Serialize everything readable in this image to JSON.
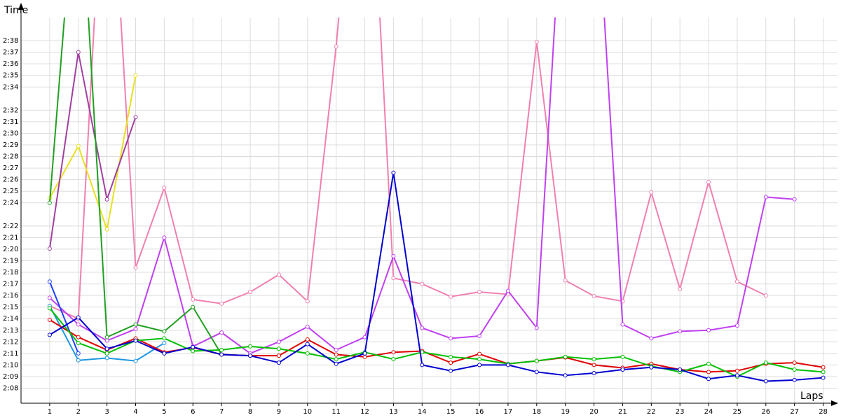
{
  "chart_data": {
    "type": "line",
    "y_label": "Time",
    "x_label": "Laps",
    "x": [
      1,
      2,
      3,
      4,
      5,
      6,
      7,
      8,
      9,
      10,
      11,
      12,
      13,
      14,
      15,
      16,
      17,
      18,
      19,
      20,
      21,
      22,
      23,
      24,
      25,
      26,
      27,
      28
    ],
    "xlim": [
      0,
      28.5
    ],
    "xticks": [
      1,
      2,
      3,
      4,
      5,
      6,
      7,
      8,
      9,
      10,
      11,
      12,
      13,
      14,
      15,
      16,
      17,
      18,
      19,
      20,
      21,
      22,
      23,
      24,
      25,
      26,
      27,
      28
    ],
    "ylim": [
      126.7,
      160
    ],
    "yticks": [
      {
        "value": 128,
        "label": "2:08"
      },
      {
        "value": 129,
        "label": "2:09"
      },
      {
        "value": 130,
        "label": "2:10"
      },
      {
        "value": 131,
        "label": "2:11"
      },
      {
        "value": 132,
        "label": "2:12"
      },
      {
        "value": 133,
        "label": "2:13"
      },
      {
        "value": 134,
        "label": "2:14"
      },
      {
        "value": 135,
        "label": "2:15"
      },
      {
        "value": 136,
        "label": "2:16"
      },
      {
        "value": 137,
        "label": "2:17"
      },
      {
        "value": 138,
        "label": "2:18"
      },
      {
        "value": 139,
        "label": "2:19"
      },
      {
        "value": 140,
        "label": "2:20"
      },
      {
        "value": 141,
        "label": "2:21"
      },
      {
        "value": 142,
        "label": "2:22"
      },
      {
        "value": 144,
        "label": "2:24"
      },
      {
        "value": 145,
        "label": "2:25"
      },
      {
        "value": 146,
        "label": "2:26"
      },
      {
        "value": 147,
        "label": "2:27"
      },
      {
        "value": 148,
        "label": "2:28"
      },
      {
        "value": 149,
        "label": "2:29"
      },
      {
        "value": 150,
        "label": "2:30"
      },
      {
        "value": 151,
        "label": "2:31"
      },
      {
        "value": 152,
        "label": "2:32"
      },
      {
        "value": 154,
        "label": "2:34"
      },
      {
        "value": 155,
        "label": "2:35"
      },
      {
        "value": 156,
        "label": "2:36"
      },
      {
        "value": 157,
        "label": "2:37"
      },
      {
        "value": 158,
        "label": "2:38"
      }
    ],
    "grid": true,
    "series": [
      {
        "color": "#f080b0",
        "values": [
          135.1,
          134.0,
          180,
          138.4,
          145.3,
          135.65,
          135.3,
          136.3,
          137.8,
          135.5,
          157.5,
          185,
          137.5,
          137.0,
          135.9,
          136.3,
          136.1,
          157.9,
          137.3,
          135.95,
          135.5,
          144.9,
          136.55,
          145.8,
          137.2,
          136.0,
          null,
          null
        ]
      },
      {
        "color": "#c040f0",
        "values": [
          135.8,
          133.5,
          132.1,
          133.1,
          141.0,
          131.6,
          132.8,
          131.0,
          132.0,
          133.3,
          131.3,
          132.4,
          139.4,
          133.2,
          132.3,
          132.5,
          136.4,
          133.2,
          175,
          175,
          133.5,
          132.3,
          132.9,
          133.0,
          133.4,
          144.5,
          144.3,
          null
        ]
      },
      {
        "color": "#e8e020",
        "values": [
          144.4,
          148.9,
          141.7,
          155.0,
          null,
          null,
          null,
          null,
          null,
          null,
          null,
          null,
          null,
          null,
          null,
          null,
          null,
          null,
          null,
          null,
          null,
          null,
          null,
          null,
          null,
          null,
          null,
          null
        ]
      },
      {
        "color": "#a040a0",
        "values": [
          140.05,
          157.0,
          144.3,
          151.4,
          null,
          null,
          null,
          null,
          null,
          null,
          null,
          null,
          null,
          null,
          null,
          null,
          null,
          null,
          null,
          null,
          null,
          null,
          null,
          null,
          null,
          null,
          null,
          null
        ]
      },
      {
        "color": "#20a020",
        "values": [
          144.0,
          175,
          132.4,
          133.5,
          132.9,
          135.0,
          130.9,
          null,
          null,
          null,
          null,
          null,
          null,
          null,
          null,
          null,
          null,
          null,
          null,
          null,
          null,
          null,
          null,
          null,
          null,
          null,
          null,
          null
        ]
      },
      {
        "color": "#1e98e0",
        "values": [
          135.1,
          130.4,
          130.6,
          130.35,
          131.9,
          null,
          null,
          null,
          null,
          null,
          null,
          null,
          null,
          null,
          null,
          null,
          null,
          null,
          null,
          null,
          null,
          null,
          null,
          null,
          null,
          null,
          null,
          null
        ]
      },
      {
        "color": "#2040ff",
        "values": [
          137.2,
          131.0,
          null,
          null,
          null,
          null,
          null,
          null,
          null,
          null,
          null,
          null,
          null,
          null,
          null,
          null,
          null,
          null,
          null,
          null,
          null,
          null,
          null,
          null,
          null,
          null,
          null,
          null
        ]
      },
      {
        "color": "#e00000",
        "values": [
          133.9,
          132.4,
          131.3,
          132.3,
          131.1,
          131.5,
          130.9,
          130.8,
          130.8,
          132.2,
          130.9,
          130.7,
          131.1,
          131.2,
          130.2,
          130.95,
          130.1,
          130.35,
          130.65,
          130.0,
          129.75,
          130.1,
          129.6,
          129.4,
          129.5,
          130.1,
          130.2,
          129.8
        ]
      },
      {
        "color": "#00c000",
        "values": [
          134.9,
          131.9,
          131.0,
          132.1,
          132.3,
          131.2,
          131.3,
          131.6,
          131.4,
          131.0,
          130.5,
          131.1,
          130.5,
          131.1,
          130.7,
          130.5,
          130.1,
          130.35,
          130.7,
          130.5,
          130.7,
          129.9,
          129.4,
          130.1,
          129.0,
          130.2,
          129.6,
          129.4
        ]
      },
      {
        "color": "#0000d0",
        "values": [
          132.6,
          134.1,
          131.4,
          132.1,
          131.0,
          131.55,
          130.9,
          130.8,
          130.2,
          131.8,
          130.1,
          131.0,
          146.6,
          130.0,
          129.5,
          130.0,
          130.0,
          129.4,
          129.1,
          129.3,
          129.6,
          129.8,
          129.6,
          128.8,
          129.1,
          128.6,
          128.7,
          128.9
        ]
      }
    ]
  }
}
